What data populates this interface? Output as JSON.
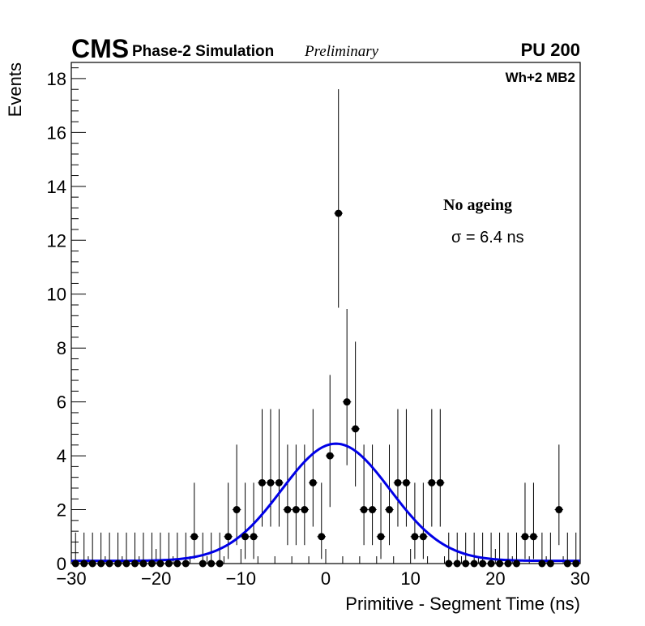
{
  "header": {
    "experiment": "CMS",
    "subtitle": "Phase-2 Simulation",
    "status": "Preliminary",
    "pileup": "PU 200"
  },
  "chart_data": {
    "type": "scatter",
    "title": "",
    "xlabel": "Primitive - Segment Time (ns)",
    "ylabel": "Events",
    "xlim": [
      -30,
      30
    ],
    "ylim": [
      0,
      18.6
    ],
    "x_ticks": [
      "−30",
      "−20",
      "−10",
      "0",
      "10",
      "20",
      "30"
    ],
    "y_ticks": [
      "0",
      "2",
      "4",
      "6",
      "8",
      "10",
      "12",
      "14",
      "16",
      "18"
    ],
    "grid": false,
    "annotations": {
      "station": "Wh+2 MB2",
      "condition": "No ageing",
      "sigma": "σ = 6.4 ns"
    },
    "series": [
      {
        "kind": "histogram-points",
        "bin_width": 1,
        "x": [
          -29.5,
          -28.5,
          -27.5,
          -26.5,
          -25.5,
          -24.5,
          -23.5,
          -22.5,
          -21.5,
          -20.5,
          -19.5,
          -18.5,
          -17.5,
          -16.5,
          -15.5,
          -14.5,
          -13.5,
          -12.5,
          -11.5,
          -10.5,
          -9.5,
          -8.5,
          -7.5,
          -6.5,
          -5.5,
          -4.5,
          -3.5,
          -2.5,
          -1.5,
          -0.5,
          0.5,
          1.5,
          2.5,
          3.5,
          4.5,
          5.5,
          6.5,
          7.5,
          8.5,
          9.5,
          10.5,
          11.5,
          12.5,
          13.5,
          14.5,
          15.5,
          16.5,
          17.5,
          18.5,
          19.5,
          20.5,
          21.5,
          22.5,
          23.5,
          24.5,
          25.5,
          26.5,
          27.5,
          28.5,
          29.5
        ],
        "y": [
          0,
          0,
          0,
          0,
          0,
          0,
          0,
          0,
          0,
          0,
          0,
          0,
          0,
          0,
          1,
          0,
          0,
          0,
          1,
          2,
          1,
          1,
          3,
          3,
          3,
          2,
          2,
          2,
          3,
          1,
          4,
          13,
          6,
          5,
          2,
          2,
          1,
          2,
          3,
          3,
          1,
          1,
          3,
          3,
          0,
          0,
          0,
          0,
          0,
          0,
          0,
          0,
          0,
          1,
          1,
          0,
          0,
          2,
          0,
          0
        ]
      },
      {
        "kind": "gaussian-fit",
        "name": "",
        "color": "#0000e6",
        "amplitude": 4.35,
        "mean": 1.2,
        "sigma": 6.4,
        "baseline": 0.1
      }
    ],
    "colors": {
      "points": "#000000",
      "fit": "#0000e6",
      "frame": "#000000"
    }
  }
}
